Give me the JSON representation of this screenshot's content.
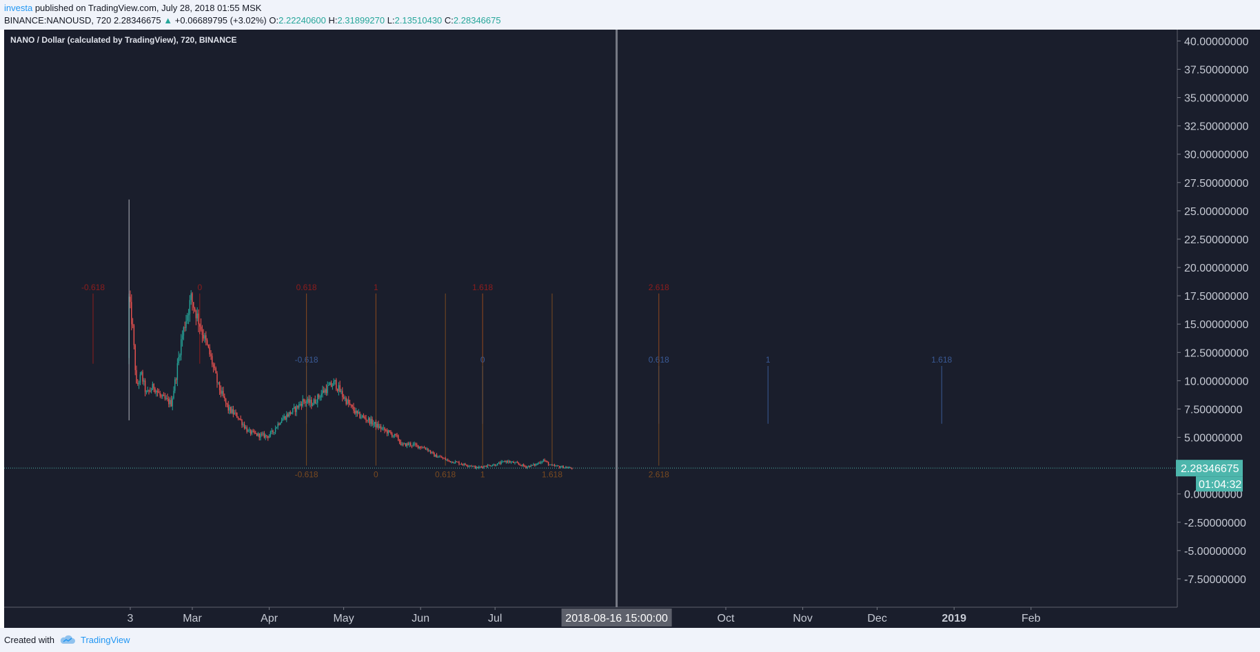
{
  "header": {
    "author": "investa",
    "published_text": "published on TradingView.com, July 28, 2018 01:55 MSK",
    "symbol": "BINANCE:NANOUSD, 720",
    "last": "2.28346675",
    "change": "+0.06689795 (+3.02%)",
    "o_label": "O:",
    "o_value": "2.22240600",
    "h_label": "H:",
    "h_value": "2.31899270",
    "l_label": "L:",
    "l_value": "2.13510430",
    "c_label": "C:",
    "c_value": "2.28346675"
  },
  "footer": {
    "created_label": "Created with",
    "brand": "TradingView"
  },
  "colors": {
    "background": "#1a1e2c",
    "axis_bg": "#1a1e2c",
    "text": "#c6cad4",
    "up": "#26a69a",
    "down": "#ef5350",
    "fib_red": "#8e1d1d",
    "fib_blue": "#3a5a96",
    "fib_orange": "#7a4a20",
    "price_line": "#4db6ac",
    "crosshair": "#787b86",
    "crosshair_label": "#5d606b"
  },
  "chart_data": {
    "type": "candlestick",
    "title": "NANO / Dollar (calculated by TradingView), 720, BINANCE",
    "interval": "720",
    "ylim": [
      -10.0,
      41.0
    ],
    "y_ticks": [
      "40.00000000",
      "37.50000000",
      "35.00000000",
      "32.50000000",
      "30.00000000",
      "27.50000000",
      "25.00000000",
      "22.50000000",
      "20.00000000",
      "17.50000000",
      "15.00000000",
      "12.50000000",
      "10.00000000",
      "7.50000000",
      "5.00000000",
      "2.50000000",
      "0.00000000",
      "-2.50000000",
      "-5.00000000",
      "-7.50000000"
    ],
    "x_range_days": [
      -18,
      212
    ],
    "x_ticks": [
      {
        "label": "3",
        "day": 0,
        "bold": false
      },
      {
        "label": "Mar",
        "day": 25,
        "bold": false
      },
      {
        "label": "Apr",
        "day": 56,
        "bold": false
      },
      {
        "label": "May",
        "day": 86,
        "bold": false
      },
      {
        "label": "Jun",
        "day": 117,
        "bold": false
      },
      {
        "label": "Jul",
        "day": 147,
        "bold": false
      },
      {
        "label": "Oct",
        "day": 240,
        "bold": false
      },
      {
        "label": "Nov",
        "day": 271,
        "bold": false
      },
      {
        "label": "Dec",
        "day": 301,
        "bold": false
      },
      {
        "label": "2019",
        "day": 332,
        "bold": true
      },
      {
        "label": "Feb",
        "day": 363,
        "bold": false
      }
    ],
    "price_path": [
      [
        -0.5,
        12.0
      ],
      [
        0,
        17.2
      ],
      [
        1.5,
        14.5
      ],
      [
        3,
        9.5
      ],
      [
        5,
        10.5
      ],
      [
        7,
        8.8
      ],
      [
        10,
        9.5
      ],
      [
        13,
        8.5
      ],
      [
        17,
        8.0
      ],
      [
        19,
        10.5
      ],
      [
        21,
        13.5
      ],
      [
        23,
        15.5
      ],
      [
        25,
        17.3
      ],
      [
        27,
        16.0
      ],
      [
        30,
        14.0
      ],
      [
        33,
        12.0
      ],
      [
        36,
        9.5
      ],
      [
        40,
        7.5
      ],
      [
        44,
        6.8
      ],
      [
        48,
        5.5
      ],
      [
        52,
        5.2
      ],
      [
        56,
        5.1
      ],
      [
        58,
        5.5
      ],
      [
        61,
        6.5
      ],
      [
        64,
        7.0
      ],
      [
        67,
        7.5
      ],
      [
        70,
        8.2
      ],
      [
        74,
        8.0
      ],
      [
        78,
        9.0
      ],
      [
        81,
        9.5
      ],
      [
        83,
        9.8
      ],
      [
        86,
        8.7
      ],
      [
        89,
        7.8
      ],
      [
        92,
        7.0
      ],
      [
        96,
        6.6
      ],
      [
        100,
        6.0
      ],
      [
        104,
        5.5
      ],
      [
        108,
        5.0
      ],
      [
        110,
        4.3
      ],
      [
        113,
        4.4
      ],
      [
        117,
        4.2
      ],
      [
        120,
        4.0
      ],
      [
        123,
        3.4
      ],
      [
        126,
        3.2
      ],
      [
        129,
        2.9
      ],
      [
        132,
        2.8
      ],
      [
        135,
        2.6
      ],
      [
        138,
        2.5
      ],
      [
        140,
        2.3
      ],
      [
        144,
        2.5
      ],
      [
        148,
        2.6
      ],
      [
        152,
        2.9
      ],
      [
        156,
        2.7
      ],
      [
        160,
        2.4
      ],
      [
        164,
        2.6
      ],
      [
        167,
        3.0
      ],
      [
        170,
        2.5
      ],
      [
        174,
        2.4
      ],
      [
        178,
        2.28
      ]
    ],
    "spike": {
      "day": -0.5,
      "high": 26.0,
      "low": 6.5
    },
    "last_price": "2.28346675",
    "last_price_value": 2.28346675,
    "countdown": "01:04:32",
    "crosshair_label": "2018-08-16 15:00:00",
    "crosshair_day": 196,
    "fib_red": {
      "levels": [
        {
          "label": "-0.618",
          "day": -15
        },
        {
          "label": "0",
          "day": 28
        },
        {
          "label": "0.618",
          "day": 71
        },
        {
          "label": "1",
          "day": 99
        },
        {
          "label": "1.618",
          "day": 142
        },
        {
          "label": "2.618",
          "day": 213
        }
      ],
      "top_value": 17.7,
      "bottom_value": 11.5
    },
    "fib_blue": {
      "levels": [
        {
          "label": "-0.618",
          "day": 71
        },
        {
          "label": "0",
          "day": 142
        },
        {
          "label": "0.618",
          "day": 213
        },
        {
          "label": "1",
          "day": 257
        },
        {
          "label": "1.618",
          "day": 327
        }
      ],
      "top_value": 11.3,
      "bottom_value": 6.2
    },
    "fib_orange": {
      "levels": [
        {
          "label": "-0.618",
          "day": 71
        },
        {
          "label": "0",
          "day": 99
        },
        {
          "label": "0.618",
          "day": 127
        },
        {
          "label": "1",
          "day": 142
        },
        {
          "label": "1.618",
          "day": 170
        },
        {
          "label": "2.618",
          "day": 213
        }
      ],
      "top_value": 17.7,
      "bottom_value": 2.5
    }
  }
}
